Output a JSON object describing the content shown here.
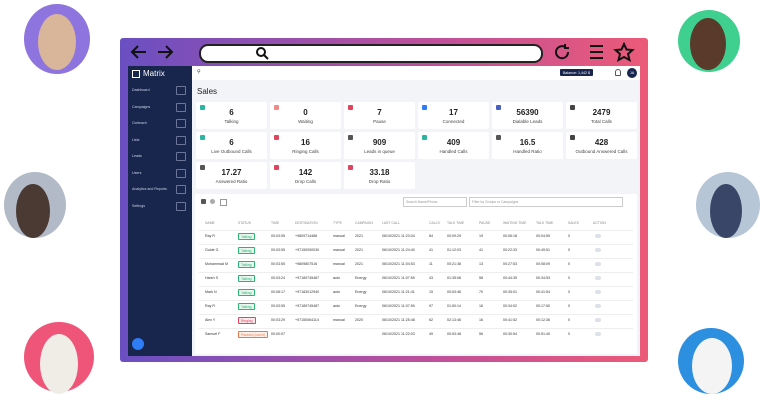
{
  "app": {
    "brand": "Matrix",
    "sidebar": [
      "Dashboard",
      "Campaigns",
      "Outreach",
      "Lists",
      "Leads",
      "Users",
      "Analytics and Reports",
      "Settings"
    ],
    "balance": "Balance: 1,442 $",
    "user_initials": "JA"
  },
  "header": {
    "title": "Sales"
  },
  "stats": [
    {
      "value": "6",
      "label": "Talking"
    },
    {
      "value": "0",
      "label": "Waiting"
    },
    {
      "value": "7",
      "label": "Pause"
    },
    {
      "value": "17",
      "label": "Connected"
    },
    {
      "value": "56390",
      "label": "Dialable Leads"
    },
    {
      "value": "2479",
      "label": "Total Calls"
    },
    {
      "value": "6",
      "label": "Live Outbound Calls"
    },
    {
      "value": "16",
      "label": "Ringing Calls"
    },
    {
      "value": "909",
      "label": "Leads in queue"
    },
    {
      "value": "409",
      "label": "Handled Calls"
    },
    {
      "value": "16.5",
      "label": "Handled Ratio"
    },
    {
      "value": "428",
      "label": "Outbound Answered Calls"
    },
    {
      "value": "17.27",
      "label": "Answered Ratio"
    },
    {
      "value": "142",
      "label": "Drop Calls"
    },
    {
      "value": "33.18",
      "label": "Drop Ratio"
    }
  ],
  "table": {
    "search_placeholder": "Search Name/Phone",
    "filter_placeholder": "Filter by Groups or Campaigns",
    "columns": [
      "NAME",
      "STATUS",
      "TIME",
      "DESTINATION",
      "TYPE",
      "CAMPAIGN",
      "LAST CALL",
      "CALLS",
      "TALK TIME",
      "PAUSE",
      "WAITING TIME",
      "TALK TIME",
      "SALES",
      "ACTION"
    ],
    "rows": [
      [
        "Ray R",
        "Talking",
        "00:03:55",
        "+9809714488",
        "manual",
        "2021",
        "06/10/2021 11:23:04",
        "84",
        "00:09:29",
        "19",
        "00:06:18",
        "00:04:55",
        "0"
      ],
      [
        "Guide G",
        "Talking",
        "00:03:55",
        "+97150050030",
        "manual",
        "2021",
        "06/10/2021 11:24:40",
        "41",
        "01:12:03",
        "41",
        "00:22:33",
        "00:49:51",
        "0"
      ],
      [
        "Mohammad M",
        "Talking",
        "00:03:55",
        "+9809807516",
        "manual",
        "2021",
        "06/10/2021 11:04:53",
        "11",
        "00:21:38",
        "13",
        "00:27:53",
        "00:08:09",
        "0"
      ],
      [
        "Harsh S",
        "Talking",
        "00:03:24",
        "+97189745487",
        "auto",
        "Energy",
        "06/10/2021 11:07:59",
        "43",
        "01:35:08",
        "58",
        "00:44:35",
        "00:34:53",
        "0"
      ],
      [
        "Mark N",
        "Talking",
        "00:08:17",
        "+97183012940",
        "auto",
        "Energy",
        "06/10/2021 11:21:41",
        "15",
        "00:53:46",
        "70",
        "00:35:01",
        "00:41:54",
        "0"
      ],
      [
        "Ray R",
        "Talking",
        "00:03:55",
        "+97189745487",
        "auto",
        "Energy",
        "06/10/2021 11:07:59",
        "97",
        "01:50:14",
        "16",
        "00:34:02",
        "00:17:50",
        "0"
      ],
      [
        "Alex Y",
        "Ringing",
        "00:03:29",
        "+97150064114",
        "manual",
        "2020",
        "06/10/2021 11:25:48",
        "62",
        "02:13:46",
        "16",
        "00:41:52",
        "00:12:36",
        "0"
      ],
      [
        "Samuel F",
        "Paused (Lunch)",
        "00:00:07",
        "",
        "",
        "",
        "06/10/2021 11:22:03",
        "49",
        "00:53:48",
        "56",
        "00:30:54",
        "00:51:40",
        "0"
      ]
    ]
  }
}
